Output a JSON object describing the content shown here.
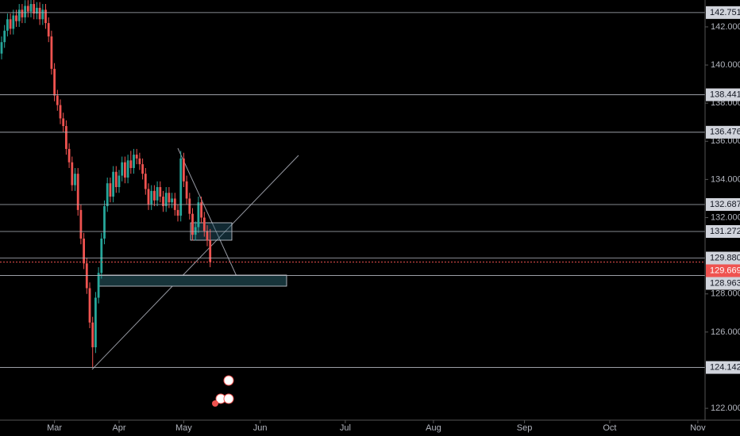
{
  "chart_data": {
    "type": "candlestick",
    "x": [
      0,
      1,
      2,
      3,
      4,
      5,
      6,
      7,
      8,
      9,
      10,
      11,
      12,
      13,
      14,
      15,
      16,
      17,
      18,
      19,
      20,
      21,
      22,
      23,
      24,
      25,
      26,
      27,
      28,
      29,
      30,
      31,
      32,
      33,
      34,
      35,
      36,
      37,
      38,
      39,
      40,
      41,
      42,
      43,
      44,
      45,
      46,
      47,
      48,
      49,
      50,
      51,
      52,
      53,
      54,
      55,
      56,
      57,
      58,
      59,
      60,
      61,
      62,
      63,
      64,
      65,
      66,
      67,
      68,
      69,
      70,
      71
    ],
    "open": [
      140.6,
      141.2,
      141.8,
      142.4,
      141.9,
      142.6,
      142.3,
      142.9,
      142.5,
      143.1,
      142.8,
      143.2,
      142.7,
      143.0,
      142.4,
      142.9,
      142.2,
      141.5,
      139.8,
      138.4,
      137.9,
      137.2,
      136.8,
      135.6,
      134.9,
      133.7,
      134.3,
      132.4,
      130.9,
      129.6,
      128.3,
      126.5,
      125.2,
      127.8,
      129.1,
      130.9,
      132.6,
      133.8,
      133.1,
      134.4,
      133.6,
      134.2,
      134.9,
      134.1,
      135.0,
      134.6,
      135.3,
      135.1,
      134.8,
      134.3,
      133.5,
      132.7,
      133.4,
      132.9,
      133.6,
      133.1,
      132.6,
      133.3,
      132.8,
      133.0,
      132.4,
      132.1,
      135.1,
      133.9,
      133.0,
      132.2,
      131.1,
      131.5,
      132.8,
      132.0,
      131.3,
      130.8
    ],
    "high": [
      141.5,
      142.1,
      142.7,
      142.7,
      142.9,
      142.9,
      143.2,
      143.2,
      143.4,
      143.4,
      143.5,
      143.5,
      143.3,
      143.3,
      143.2,
      143.2,
      142.5,
      141.8,
      140.1,
      138.7,
      138.2,
      137.5,
      137.1,
      135.9,
      135.2,
      134.6,
      134.6,
      132.7,
      131.2,
      129.9,
      128.6,
      126.8,
      128.1,
      129.4,
      131.2,
      132.9,
      134.1,
      134.1,
      134.7,
      134.7,
      134.5,
      135.2,
      135.2,
      135.3,
      135.5,
      135.6,
      135.6,
      135.4,
      135.1,
      134.6,
      133.8,
      133.7,
      133.7,
      133.9,
      133.9,
      133.4,
      133.6,
      133.6,
      133.3,
      133.3,
      132.7,
      135.5,
      135.4,
      134.2,
      133.3,
      132.5,
      131.8,
      133.1,
      133.1,
      132.3,
      131.6,
      131.4
    ],
    "low": [
      140.3,
      140.9,
      141.5,
      141.6,
      141.6,
      142.0,
      142.0,
      142.2,
      142.2,
      142.5,
      142.5,
      142.4,
      142.4,
      142.1,
      142.1,
      141.9,
      141.2,
      139.5,
      138.1,
      137.6,
      136.9,
      136.5,
      135.3,
      134.6,
      133.4,
      133.4,
      132.1,
      130.6,
      129.3,
      128.0,
      126.2,
      124.142,
      124.9,
      127.5,
      128.8,
      130.6,
      132.3,
      132.8,
      132.8,
      133.3,
      133.3,
      133.9,
      133.8,
      133.8,
      134.3,
      134.3,
      134.8,
      134.5,
      134.0,
      133.2,
      132.4,
      132.4,
      132.6,
      132.6,
      132.8,
      132.3,
      132.3,
      132.5,
      132.5,
      132.1,
      131.8,
      131.8,
      133.6,
      132.7,
      131.9,
      130.8,
      130.8,
      131.2,
      131.7,
      131.0,
      130.5,
      129.4
    ],
    "close": [
      141.2,
      141.8,
      142.4,
      141.9,
      142.6,
      142.3,
      142.9,
      142.5,
      143.1,
      142.8,
      143.2,
      142.7,
      143.0,
      142.4,
      142.9,
      142.2,
      141.5,
      139.8,
      138.4,
      137.9,
      137.2,
      136.8,
      135.6,
      134.9,
      133.7,
      134.3,
      132.4,
      130.9,
      129.6,
      128.3,
      126.5,
      125.2,
      127.8,
      129.1,
      130.9,
      132.6,
      133.8,
      133.1,
      134.4,
      133.6,
      134.2,
      134.9,
      134.1,
      135.0,
      134.6,
      135.3,
      135.1,
      134.8,
      134.3,
      133.5,
      132.7,
      133.4,
      132.9,
      133.6,
      133.1,
      132.6,
      133.3,
      132.8,
      133.0,
      132.4,
      132.1,
      135.1,
      133.9,
      133.0,
      132.2,
      131.1,
      131.5,
      132.8,
      132.0,
      131.3,
      130.8,
      129.669
    ],
    "up_color": "#26a69a",
    "down_color": "#ef5350",
    "xlim": [
      0,
      240
    ],
    "xticks": [
      {
        "value": 18,
        "label": "Mar"
      },
      {
        "value": 40,
        "label": "Apr"
      },
      {
        "value": 62,
        "label": "May"
      },
      {
        "value": 88,
        "label": "Jun"
      },
      {
        "value": 117,
        "label": "Jul"
      },
      {
        "value": 147,
        "label": "Aug"
      },
      {
        "value": 178,
        "label": "Sep"
      },
      {
        "value": 207,
        "label": "Oct"
      },
      {
        "value": 237,
        "label": "Nov"
      }
    ],
    "ylim": [
      121.38,
      143.41
    ],
    "yticks": [
      {
        "value": 122,
        "label": "122.000"
      },
      {
        "value": 126,
        "label": "126.000"
      },
      {
        "value": 128,
        "label": "128.000"
      },
      {
        "value": 132,
        "label": "132.000"
      },
      {
        "value": 134,
        "label": "134.000"
      },
      {
        "value": 136,
        "label": "136.000"
      },
      {
        "value": 138,
        "label": "138.000"
      },
      {
        "value": 140,
        "label": "140.000"
      },
      {
        "value": 142,
        "label": "142.000"
      }
    ],
    "levels": [
      142.751,
      138.441,
      136.476,
      132.687,
      131.272,
      {
        "value": 129.88,
        "label": "129.880"
      },
      128.963,
      124.142
    ]
  }
}
